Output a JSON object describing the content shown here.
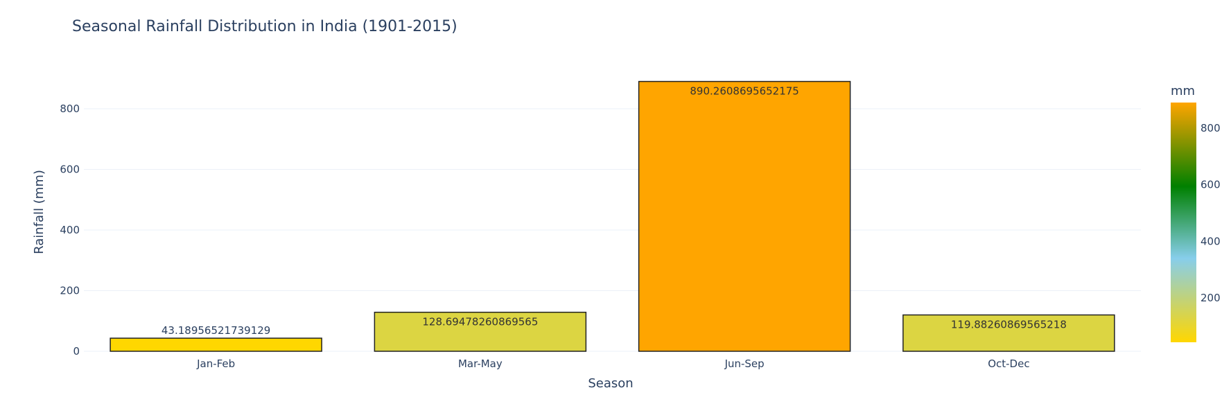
{
  "chart_data": {
    "type": "bar",
    "title": "Seasonal Rainfall Distribution in India (1901-2015)",
    "xlabel": "Season",
    "ylabel": "Rainfall (mm)",
    "ylim": [
      0,
      935
    ],
    "yticks": [
      0,
      200,
      400,
      600,
      800
    ],
    "grid": true,
    "categories": [
      "Jan-Feb",
      "Mar-May",
      "Jun-Sep",
      "Oct-Dec"
    ],
    "values": [
      43.18956521739129,
      128.69478260869565,
      890.2608695652175,
      119.88260869565218
    ],
    "value_labels": [
      "43.18956521739129",
      "128.69478260869565",
      "890.2608695652175",
      "119.88260869565218"
    ],
    "bar_colors": [
      "#ffd700",
      "#dcd542",
      "#ffa500",
      "#dcd542"
    ],
    "colorbar": {
      "title": "mm",
      "range": [
        43.18956521739129,
        890.2608695652175
      ],
      "ticks": [
        200,
        400,
        600,
        800
      ],
      "colorscale": [
        [
          0.0,
          "#ffd700"
        ],
        [
          0.35,
          "#87ceeb"
        ],
        [
          0.65,
          "#008000"
        ],
        [
          1.0,
          "#ffa500"
        ]
      ]
    },
    "colors": {
      "text": "#2a3f5f",
      "grid": "#ebf0f8",
      "bar_outline": "#222222",
      "background": "#ffffff"
    }
  }
}
